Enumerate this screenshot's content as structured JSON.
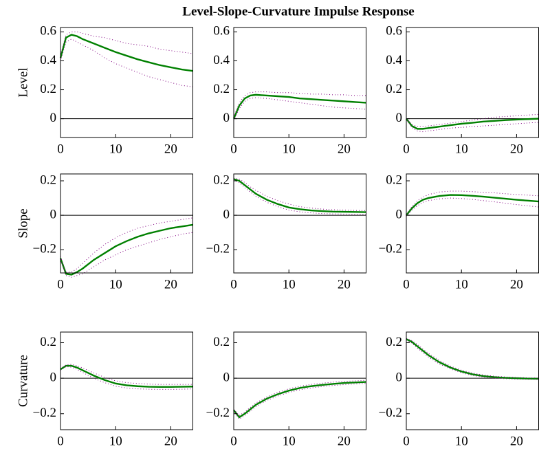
{
  "title": "Level-Slope-Curvature Impulse Response",
  "chart_data": [
    {
      "type": "line",
      "ylabel": "Level",
      "x": [
        0,
        1,
        2,
        3,
        4,
        6,
        8,
        10,
        12,
        14,
        16,
        18,
        20,
        22,
        24
      ],
      "xlim": [
        0,
        24
      ],
      "xticks": [
        0,
        10,
        20
      ],
      "ylim": [
        -0.13,
        0.63
      ],
      "yticks": [
        0,
        0.2,
        0.4,
        0.6
      ],
      "zero_line": true,
      "series": [
        {
          "color": "#008000",
          "style": "solid",
          "values": [
            0.42,
            0.56,
            0.58,
            0.57,
            0.55,
            0.52,
            0.49,
            0.46,
            0.435,
            0.41,
            0.39,
            0.37,
            0.355,
            0.34,
            0.33
          ]
        },
        {
          "color": "#800080",
          "style": "dotted",
          "values": [
            0.44,
            0.58,
            0.6,
            0.6,
            0.59,
            0.57,
            0.56,
            0.54,
            0.52,
            0.51,
            0.5,
            0.48,
            0.47,
            0.46,
            0.45
          ]
        },
        {
          "color": "#800080",
          "style": "dotted",
          "values": [
            0.4,
            0.53,
            0.55,
            0.53,
            0.51,
            0.47,
            0.42,
            0.38,
            0.35,
            0.32,
            0.29,
            0.27,
            0.25,
            0.23,
            0.22
          ]
        }
      ]
    },
    {
      "type": "line",
      "x": [
        0,
        1,
        2,
        3,
        4,
        6,
        8,
        10,
        12,
        14,
        16,
        18,
        20,
        22,
        24
      ],
      "xlim": [
        0,
        24
      ],
      "xticks": [
        0,
        10,
        20
      ],
      "ylim": [
        -0.13,
        0.63
      ],
      "yticks": [
        0,
        0.2,
        0.4,
        0.6
      ],
      "zero_line": true,
      "series": [
        {
          "color": "#008000",
          "style": "solid",
          "values": [
            0,
            0.09,
            0.14,
            0.16,
            0.165,
            0.16,
            0.155,
            0.15,
            0.14,
            0.135,
            0.13,
            0.125,
            0.12,
            0.115,
            0.11
          ]
        },
        {
          "color": "#800080",
          "style": "dotted",
          "values": [
            0.01,
            0.11,
            0.16,
            0.18,
            0.185,
            0.185,
            0.18,
            0.18,
            0.175,
            0.17,
            0.17,
            0.165,
            0.165,
            0.16,
            0.16
          ]
        },
        {
          "color": "#800080",
          "style": "dotted",
          "values": [
            -0.01,
            0.07,
            0.12,
            0.14,
            0.145,
            0.14,
            0.13,
            0.12,
            0.11,
            0.1,
            0.09,
            0.08,
            0.075,
            0.07,
            0.065
          ]
        }
      ]
    },
    {
      "type": "line",
      "x": [
        0,
        1,
        2,
        3,
        4,
        6,
        8,
        10,
        12,
        14,
        16,
        18,
        20,
        22,
        24
      ],
      "xlim": [
        0,
        24
      ],
      "xticks": [
        0,
        10,
        20
      ],
      "ylim": [
        -0.13,
        0.63
      ],
      "yticks": [
        0,
        0.2,
        0.4,
        0.6
      ],
      "zero_line": true,
      "series": [
        {
          "color": "#008000",
          "style": "solid",
          "values": [
            0,
            -0.05,
            -0.07,
            -0.07,
            -0.065,
            -0.055,
            -0.045,
            -0.035,
            -0.028,
            -0.02,
            -0.015,
            -0.01,
            -0.006,
            -0.003,
            0
          ]
        },
        {
          "color": "#800080",
          "style": "dotted",
          "values": [
            0,
            -0.04,
            -0.055,
            -0.055,
            -0.05,
            -0.04,
            -0.03,
            -0.02,
            -0.01,
            0,
            0.01,
            0.015,
            0.02,
            0.025,
            0.03
          ]
        },
        {
          "color": "#800080",
          "style": "dotted",
          "values": [
            0,
            -0.06,
            -0.085,
            -0.09,
            -0.085,
            -0.075,
            -0.065,
            -0.06,
            -0.055,
            -0.05,
            -0.045,
            -0.04,
            -0.035,
            -0.03,
            -0.025
          ]
        }
      ]
    },
    {
      "type": "line",
      "ylabel": "Slope",
      "x": [
        0,
        1,
        2,
        3,
        4,
        6,
        8,
        10,
        12,
        14,
        16,
        18,
        20,
        22,
        24
      ],
      "xlim": [
        0,
        24
      ],
      "xticks": [
        0,
        10,
        20
      ],
      "ylim": [
        -0.335,
        0.24
      ],
      "yticks": [
        {
          "value": -0.2,
          "label": "−0.2"
        },
        0,
        0.2
      ],
      "zero_line": true,
      "series": [
        {
          "color": "#008000",
          "style": "solid",
          "values": [
            -0.25,
            -0.34,
            -0.345,
            -0.33,
            -0.31,
            -0.26,
            -0.22,
            -0.18,
            -0.15,
            -0.125,
            -0.105,
            -0.09,
            -0.075,
            -0.065,
            -0.055
          ]
        },
        {
          "color": "#800080",
          "style": "dotted",
          "values": [
            -0.24,
            -0.33,
            -0.33,
            -0.31,
            -0.28,
            -0.22,
            -0.17,
            -0.13,
            -0.1,
            -0.075,
            -0.06,
            -0.045,
            -0.035,
            -0.025,
            -0.015
          ]
        },
        {
          "color": "#800080",
          "style": "dotted",
          "values": [
            -0.26,
            -0.35,
            -0.36,
            -0.35,
            -0.34,
            -0.3,
            -0.26,
            -0.23,
            -0.2,
            -0.18,
            -0.16,
            -0.14,
            -0.125,
            -0.11,
            -0.1
          ]
        }
      ]
    },
    {
      "type": "line",
      "x": [
        0,
        1,
        2,
        3,
        4,
        6,
        8,
        10,
        12,
        14,
        16,
        18,
        20,
        22,
        24
      ],
      "xlim": [
        0,
        24
      ],
      "xticks": [
        0,
        10,
        20
      ],
      "ylim": [
        -0.335,
        0.24
      ],
      "yticks": [
        {
          "value": -0.2,
          "label": "−0.2"
        },
        0,
        0.2
      ],
      "zero_line": true,
      "series": [
        {
          "color": "#008000",
          "style": "solid",
          "values": [
            0.21,
            0.2,
            0.175,
            0.15,
            0.125,
            0.09,
            0.065,
            0.045,
            0.035,
            0.028,
            0.024,
            0.021,
            0.02,
            0.019,
            0.018
          ]
        },
        {
          "color": "#800080",
          "style": "dotted",
          "values": [
            0.215,
            0.21,
            0.19,
            0.165,
            0.145,
            0.11,
            0.085,
            0.065,
            0.05,
            0.042,
            0.036,
            0.032,
            0.03,
            0.028,
            0.027
          ]
        },
        {
          "color": "#800080",
          "style": "dotted",
          "values": [
            0.205,
            0.19,
            0.16,
            0.135,
            0.11,
            0.075,
            0.05,
            0.03,
            0.02,
            0.014,
            0.01,
            0.008,
            0.007,
            0.006,
            0.005
          ]
        }
      ]
    },
    {
      "type": "line",
      "x": [
        0,
        1,
        2,
        3,
        4,
        6,
        8,
        10,
        12,
        14,
        16,
        18,
        20,
        22,
        24
      ],
      "xlim": [
        0,
        24
      ],
      "xticks": [
        0,
        10,
        20
      ],
      "ylim": [
        -0.335,
        0.24
      ],
      "yticks": [
        {
          "value": -0.2,
          "label": "−0.2"
        },
        0,
        0.2
      ],
      "zero_line": true,
      "series": [
        {
          "color": "#008000",
          "style": "solid",
          "values": [
            0,
            0.04,
            0.07,
            0.09,
            0.1,
            0.112,
            0.118,
            0.117,
            0.113,
            0.108,
            0.102,
            0.096,
            0.09,
            0.085,
            0.08
          ]
        },
        {
          "color": "#800080",
          "style": "dotted",
          "values": [
            0.005,
            0.05,
            0.085,
            0.105,
            0.12,
            0.135,
            0.14,
            0.14,
            0.137,
            0.133,
            0.13,
            0.125,
            0.12,
            0.117,
            0.113
          ]
        },
        {
          "color": "#800080",
          "style": "dotted",
          "values": [
            -0.005,
            0.03,
            0.055,
            0.075,
            0.085,
            0.095,
            0.1,
            0.097,
            0.092,
            0.085,
            0.078,
            0.07,
            0.062,
            0.055,
            0.048
          ]
        }
      ]
    },
    {
      "type": "line",
      "ylabel": "Curvature",
      "x": [
        0,
        1,
        2,
        3,
        4,
        6,
        8,
        10,
        12,
        14,
        16,
        18,
        20,
        22,
        24
      ],
      "xlim": [
        0,
        24
      ],
      "xticks": [
        0,
        10,
        20
      ],
      "ylim": [
        -0.29,
        0.26
      ],
      "yticks": [
        {
          "value": -0.2,
          "label": "−0.2"
        },
        0,
        0.2
      ],
      "zero_line": true,
      "series": [
        {
          "color": "#008000",
          "style": "solid",
          "values": [
            0.05,
            0.07,
            0.07,
            0.06,
            0.045,
            0.015,
            -0.01,
            -0.03,
            -0.04,
            -0.045,
            -0.048,
            -0.049,
            -0.049,
            -0.048,
            -0.047
          ]
        },
        {
          "color": "#800080",
          "style": "dotted",
          "values": [
            0.055,
            0.075,
            0.078,
            0.07,
            0.058,
            0.03,
            0.005,
            -0.015,
            -0.025,
            -0.03,
            -0.033,
            -0.035,
            -0.035,
            -0.035,
            -0.035
          ]
        },
        {
          "color": "#800080",
          "style": "dotted",
          "values": [
            0.045,
            0.065,
            0.062,
            0.05,
            0.033,
            0,
            -0.025,
            -0.045,
            -0.055,
            -0.06,
            -0.062,
            -0.063,
            -0.063,
            -0.062,
            -0.06
          ]
        }
      ]
    },
    {
      "type": "line",
      "x": [
        0,
        1,
        2,
        3,
        4,
        6,
        8,
        10,
        12,
        14,
        16,
        18,
        20,
        22,
        24
      ],
      "xlim": [
        0,
        24
      ],
      "xticks": [
        0,
        10,
        20
      ],
      "ylim": [
        -0.29,
        0.26
      ],
      "yticks": [
        {
          "value": -0.2,
          "label": "−0.2"
        },
        0,
        0.2
      ],
      "zero_line": true,
      "series": [
        {
          "color": "#008000",
          "style": "solid",
          "values": [
            -0.18,
            -0.22,
            -0.2,
            -0.175,
            -0.15,
            -0.115,
            -0.09,
            -0.07,
            -0.055,
            -0.045,
            -0.038,
            -0.032,
            -0.027,
            -0.024,
            -0.021
          ]
        },
        {
          "color": "#800080",
          "style": "dotted",
          "values": [
            -0.175,
            -0.21,
            -0.19,
            -0.165,
            -0.14,
            -0.105,
            -0.08,
            -0.06,
            -0.045,
            -0.035,
            -0.028,
            -0.022,
            -0.018,
            -0.015,
            -0.012
          ]
        },
        {
          "color": "#800080",
          "style": "dotted",
          "values": [
            -0.185,
            -0.23,
            -0.21,
            -0.185,
            -0.16,
            -0.125,
            -0.1,
            -0.08,
            -0.065,
            -0.055,
            -0.047,
            -0.041,
            -0.036,
            -0.032,
            -0.029
          ]
        }
      ]
    },
    {
      "type": "line",
      "x": [
        0,
        1,
        2,
        3,
        4,
        6,
        8,
        10,
        12,
        14,
        16,
        18,
        20,
        22,
        24
      ],
      "xlim": [
        0,
        24
      ],
      "xticks": [
        0,
        10,
        20
      ],
      "ylim": [
        -0.29,
        0.26
      ],
      "yticks": [
        {
          "value": -0.2,
          "label": "−0.2"
        },
        0,
        0.2
      ],
      "zero_line": true,
      "series": [
        {
          "color": "#008000",
          "style": "solid",
          "values": [
            0.22,
            0.205,
            0.18,
            0.155,
            0.13,
            0.09,
            0.06,
            0.038,
            0.022,
            0.012,
            0.006,
            0.002,
            0,
            -0.002,
            -0.003
          ]
        },
        {
          "color": "#800080",
          "style": "dotted",
          "values": [
            0.225,
            0.212,
            0.19,
            0.165,
            0.14,
            0.1,
            0.068,
            0.045,
            0.029,
            0.018,
            0.011,
            0.007,
            0.004,
            0.002,
            0.001
          ]
        },
        {
          "color": "#800080",
          "style": "dotted",
          "values": [
            0.215,
            0.198,
            0.17,
            0.145,
            0.12,
            0.08,
            0.052,
            0.031,
            0.015,
            0.006,
            0.001,
            -0.003,
            -0.005,
            -0.006,
            -0.007
          ]
        }
      ]
    }
  ]
}
